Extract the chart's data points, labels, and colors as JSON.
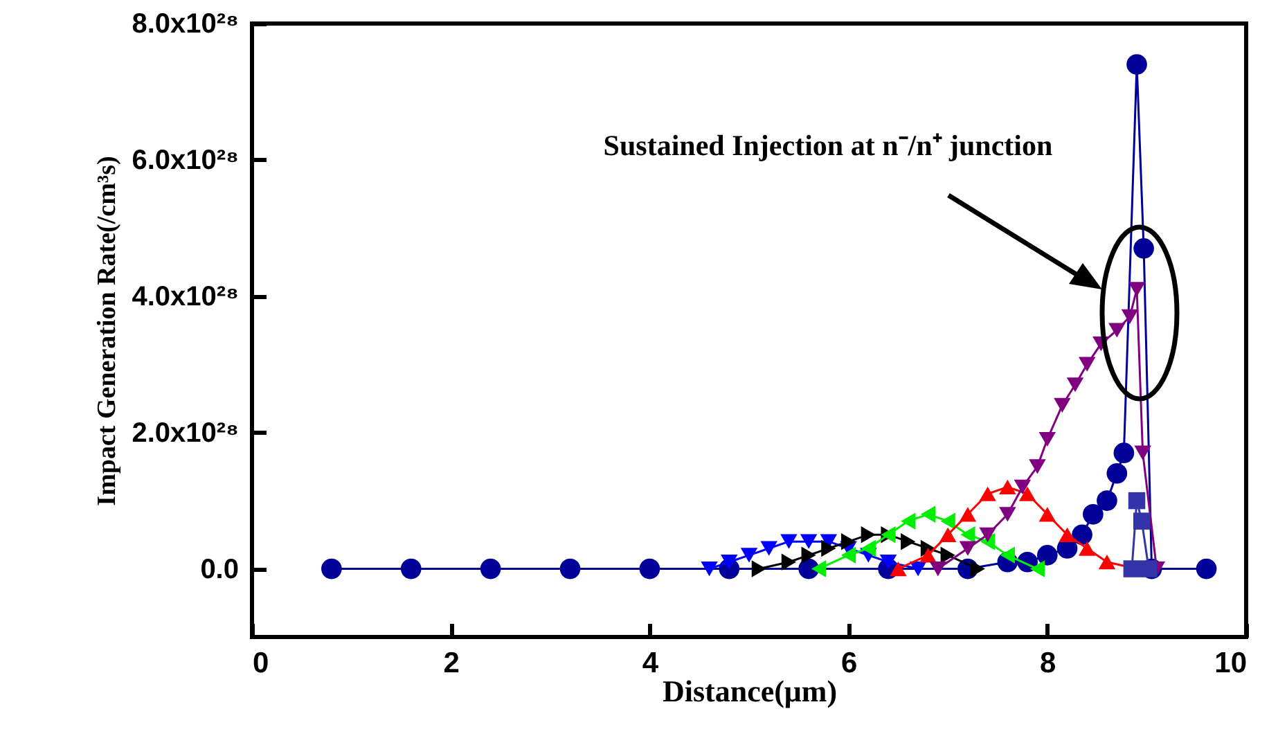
{
  "chart_data": {
    "type": "line",
    "xlabel": "Distance(μm)",
    "ylabel": "Impact Generation Rate(/cm³s)",
    "xlim": [
      0,
      10
    ],
    "xticks": [
      0,
      2,
      4,
      6,
      8,
      10
    ],
    "ylim": [
      -1e+28,
      8e+28
    ],
    "yticks": [
      {
        "value": 0,
        "label": "0.0"
      },
      {
        "value": 2e+28,
        "label": "2.0x10²⁸"
      },
      {
        "value": 4e+28,
        "label": "4.0x10²⁸"
      },
      {
        "value": 6e+28,
        "label": "6.0x10²⁸"
      },
      {
        "value": 8e+28,
        "label": "8.0x10²⁸"
      }
    ],
    "grid": false,
    "annotations": [
      "Sustained Injection at n⁻/n⁺ junction"
    ],
    "series": [
      {
        "color": "#000099",
        "marker": "circle",
        "x": [
          0.8,
          1.6,
          2.4,
          3.2,
          4.0,
          4.8,
          5.6,
          6.4,
          7.2,
          7.6,
          7.8,
          8.0,
          8.2,
          8.35,
          8.46,
          8.6,
          8.7,
          8.77,
          8.9,
          8.97,
          9.05,
          9.6
        ],
        "values": [
          0,
          0,
          0,
          0,
          0,
          0,
          0,
          0,
          0,
          1e+27,
          1e+27,
          2e+27,
          3e+27,
          5e+27,
          8e+27,
          1e+28,
          1.4e+28,
          1.7e+28,
          7.4e+28,
          4.7e+28,
          0,
          0
        ]
      },
      {
        "color": "#0000ff",
        "marker": "triangle-down",
        "x": [
          4.6,
          4.8,
          5.0,
          5.2,
          5.4,
          5.6,
          5.8,
          6.0,
          6.2,
          6.4,
          6.7
        ],
        "values": [
          0,
          1e+27,
          2e+27,
          3e+27,
          4e+27,
          4e+27,
          4e+27,
          3e+27,
          2e+27,
          1e+27,
          0
        ]
      },
      {
        "color": "#000000",
        "marker": "triangle-right",
        "x": [
          5.1,
          5.4,
          5.6,
          5.8,
          6.0,
          6.2,
          6.4,
          6.6,
          6.8,
          7.0,
          7.3
        ],
        "values": [
          0,
          1e+27,
          2e+27,
          3e+27,
          4e+27,
          5e+27,
          5e+27,
          4e+27,
          3e+27,
          2e+27,
          0
        ]
      },
      {
        "color": "#00ee00",
        "marker": "triangle-left",
        "x": [
          5.7,
          6.0,
          6.2,
          6.4,
          6.6,
          6.8,
          7.0,
          7.2,
          7.4,
          7.6,
          7.9
        ],
        "values": [
          0,
          2e+27,
          3e+27,
          5e+27,
          7e+27,
          8e+27,
          7e+27,
          5e+27,
          4e+27,
          2e+27,
          0
        ]
      },
      {
        "color": "#ff0000",
        "marker": "triangle-up",
        "x": [
          6.5,
          6.8,
          7.0,
          7.2,
          7.4,
          7.6,
          7.8,
          8.0,
          8.2,
          8.4,
          8.6,
          8.9
        ],
        "values": [
          0,
          2e+27,
          5e+27,
          8e+27,
          1.1e+28,
          1.2e+28,
          1.1e+28,
          8e+27,
          5e+27,
          3e+27,
          1e+27,
          0
        ]
      },
      {
        "color": "#800080",
        "marker": "triangle-down",
        "x": [
          6.9,
          7.2,
          7.4,
          7.6,
          7.75,
          7.9,
          8.0,
          8.15,
          8.28,
          8.4,
          8.54,
          8.7,
          8.83,
          8.9,
          8.96,
          9.1
        ],
        "values": [
          0,
          3e+27,
          5e+27,
          8e+27,
          1.2e+28,
          1.5e+28,
          1.9e+28,
          2.4e+28,
          2.7e+28,
          3e+28,
          3.3e+28,
          3.5e+28,
          3.7e+28,
          4.1e+28,
          1.7e+28,
          0
        ]
      },
      {
        "color": "#3333aa",
        "marker": "square",
        "x": [
          8.85,
          8.9,
          8.95,
          9.02
        ],
        "values": [
          0,
          1e+28,
          7e+27,
          0
        ]
      }
    ]
  }
}
